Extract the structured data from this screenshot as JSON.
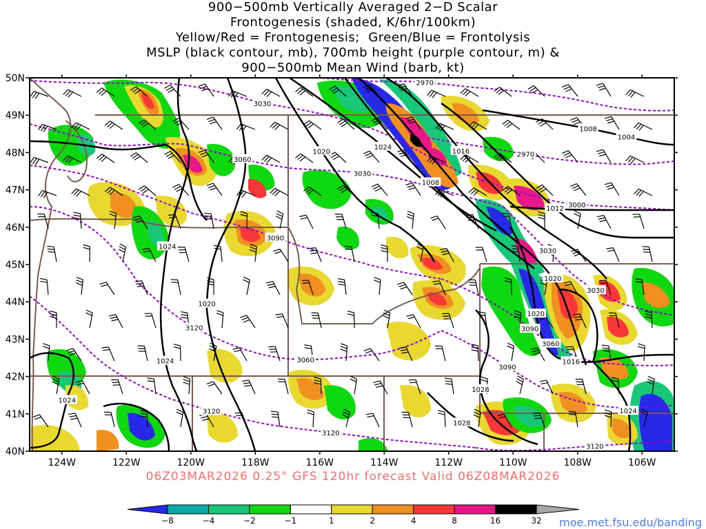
{
  "title_lines": [
    "900−500mb Vertically Averaged 2−D Scalar",
    "Frontogenesis (shaded, K/6hr/100km)",
    "Yellow/Red = Frontogenesis;  Green/Blue = Frontolysis",
    "MSLP (black contour, mb), 700mb height (purple contour, m) &",
    "900−500mb Mean Wind (barb, kt)"
  ],
  "valid_line": "06Z03MAR2026 0.25° GFS 120hr forecast Valid 06Z08MAR2026",
  "source": "moe.met.fsu.edu/banding",
  "map": {
    "lon_range": [
      -125.0,
      -105.0
    ],
    "lat_range": [
      40.0,
      50.0
    ],
    "lat_ticks": [
      "50N",
      "49N",
      "48N",
      "47N",
      "46N",
      "45N",
      "44N",
      "43N",
      "42N",
      "41N",
      "40N"
    ],
    "lon_ticks": [
      "124W",
      "122W",
      "120W",
      "118W",
      "116W",
      "114W",
      "112W",
      "110W",
      "108W",
      "106W"
    ],
    "colors": {
      "mslp_contour": "#000000",
      "height_contour": "#9900cc",
      "state_border": "#7a5a4a",
      "title_valid": "#ff6b6b"
    },
    "mslp_labels": [
      "1020",
      "1008",
      "1004",
      "1024",
      "1020",
      "1008",
      "1016",
      "1012",
      "1020",
      "1024",
      "1016",
      "1028",
      "1020",
      "1024",
      "1024",
      "1028",
      "1024"
    ],
    "height_labels": [
      "3030",
      "2970",
      "3030",
      "3060",
      "3090",
      "2970",
      "3000",
      "3030",
      "3060",
      "3120",
      "3030",
      "3090",
      "3060",
      "3090",
      "3120",
      "3120",
      "3120"
    ]
  },
  "colorbar": {
    "labels": [
      "−8",
      "−4",
      "−2",
      "−1",
      "1",
      "2",
      "4",
      "8",
      "16",
      "32"
    ],
    "colors": [
      "#2828e8",
      "#10a8a8",
      "#18c878",
      "#10d810",
      "#ffffff",
      "#e8d830",
      "#f09020",
      "#f83838",
      "#e81888",
      "#000000",
      "#a8a8a8"
    ]
  }
}
